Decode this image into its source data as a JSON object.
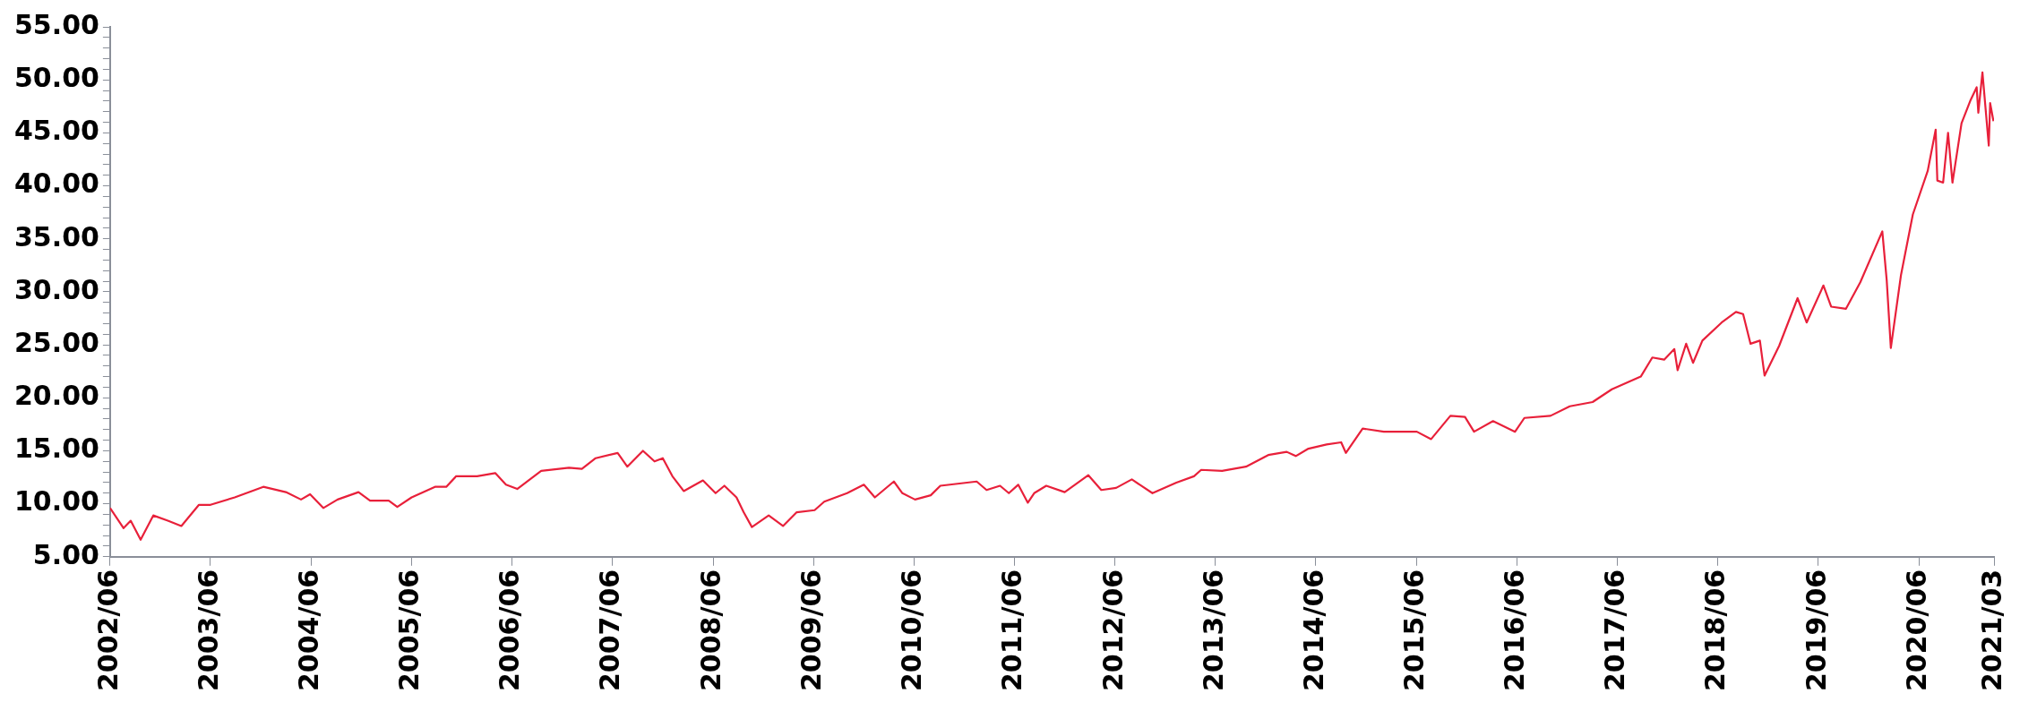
{
  "chart_data": {
    "type": "line",
    "color": "#e8203a",
    "grid": false,
    "xlim": [
      "2002-06",
      "2021-03"
    ],
    "xticks": [
      {
        "value": "2002-06",
        "label": "2002/06"
      },
      {
        "value": "2003-06",
        "label": "2003/06"
      },
      {
        "value": "2004-06",
        "label": "2004/06"
      },
      {
        "value": "2005-06",
        "label": "2005/06"
      },
      {
        "value": "2006-06",
        "label": "2006/06"
      },
      {
        "value": "2007-06",
        "label": "2007/06"
      },
      {
        "value": "2008-06",
        "label": "2008/06"
      },
      {
        "value": "2009-06",
        "label": "2009/06"
      },
      {
        "value": "2010-06",
        "label": "2010/06"
      },
      {
        "value": "2011-06",
        "label": "2011/06"
      },
      {
        "value": "2012-06",
        "label": "2012/06"
      },
      {
        "value": "2013-06",
        "label": "2013/06"
      },
      {
        "value": "2014-06",
        "label": "2014/06"
      },
      {
        "value": "2015-06",
        "label": "2015/06"
      },
      {
        "value": "2016-06",
        "label": "2016/06"
      },
      {
        "value": "2017-06",
        "label": "2017/06"
      },
      {
        "value": "2018-06",
        "label": "2018/06"
      },
      {
        "value": "2019-06",
        "label": "2019/06"
      },
      {
        "value": "2020-06",
        "label": "2020/06"
      },
      {
        "value": "2021-03",
        "label": "2021/03"
      }
    ],
    "ylim": [
      5,
      55
    ],
    "yticks": [
      {
        "value": 5,
        "label": "5.00"
      },
      {
        "value": 6,
        "label": null
      },
      {
        "value": 7,
        "label": null
      },
      {
        "value": 8,
        "label": null
      },
      {
        "value": 9,
        "label": null
      },
      {
        "value": 10,
        "label": "10.00"
      },
      {
        "value": 11,
        "label": null
      },
      {
        "value": 12,
        "label": null
      },
      {
        "value": 13,
        "label": null
      },
      {
        "value": 14,
        "label": null
      },
      {
        "value": 15,
        "label": "15.00"
      },
      {
        "value": 16,
        "label": null
      },
      {
        "value": 17,
        "label": null
      },
      {
        "value": 18,
        "label": null
      },
      {
        "value": 19,
        "label": null
      },
      {
        "value": 20,
        "label": "20.00"
      },
      {
        "value": 21,
        "label": null
      },
      {
        "value": 22,
        "label": null
      },
      {
        "value": 23,
        "label": null
      },
      {
        "value": 24,
        "label": null
      },
      {
        "value": 25,
        "label": "25.00"
      },
      {
        "value": 26,
        "label": null
      },
      {
        "value": 27,
        "label": null
      },
      {
        "value": 28,
        "label": null
      },
      {
        "value": 29,
        "label": null
      },
      {
        "value": 30,
        "label": "30.00"
      },
      {
        "value": 31,
        "label": null
      },
      {
        "value": 32,
        "label": null
      },
      {
        "value": 33,
        "label": null
      },
      {
        "value": 34,
        "label": null
      },
      {
        "value": 35,
        "label": "35.00"
      },
      {
        "value": 36,
        "label": null
      },
      {
        "value": 37,
        "label": null
      },
      {
        "value": 38,
        "label": null
      },
      {
        "value": 39,
        "label": null
      },
      {
        "value": 40,
        "label": "40.00"
      },
      {
        "value": 41,
        "label": null
      },
      {
        "value": 42,
        "label": null
      },
      {
        "value": 43,
        "label": null
      },
      {
        "value": 44,
        "label": null
      },
      {
        "value": 45,
        "label": "45.00"
      },
      {
        "value": 46,
        "label": null
      },
      {
        "value": 47,
        "label": null
      },
      {
        "value": 48,
        "label": null
      },
      {
        "value": 49,
        "label": null
      },
      {
        "value": 50,
        "label": "50.00"
      },
      {
        "value": 51,
        "label": null
      },
      {
        "value": 52,
        "label": null
      },
      {
        "value": 53,
        "label": null
      },
      {
        "value": 54,
        "label": null
      },
      {
        "value": 55,
        "label": "55.00"
      }
    ],
    "x": [
      "2002-06-01",
      "2002-07-20",
      "2002-08-15",
      "2002-09-20",
      "2002-11-05",
      "2002-12-28",
      "2003-02-15",
      "2003-04-20",
      "2003-06-01",
      "2003-08-28",
      "2003-12-10",
      "2004-03-01",
      "2004-04-25",
      "2004-05-28",
      "2004-07-15",
      "2004-09-05",
      "2004-11-20",
      "2005-01-01",
      "2005-03-10",
      "2005-04-10",
      "2005-06-01",
      "2005-08-25",
      "2005-10-05",
      "2005-11-10",
      "2006-01-25",
      "2006-04-01",
      "2006-05-10",
      "2006-06-20",
      "2006-09-15",
      "2006-12-25",
      "2007-02-10",
      "2007-04-01",
      "2007-06-20",
      "2007-07-25",
      "2007-09-20",
      "2007-11-01",
      "2007-12-01",
      "2008-01-05",
      "2008-02-15",
      "2008-04-25",
      "2008-06-10",
      "2008-07-12",
      "2008-08-25",
      "2008-09-20",
      "2008-10-20",
      "2008-12-20",
      "2009-02-10",
      "2009-04-01",
      "2009-06-05",
      "2009-07-10",
      "2009-10-01",
      "2009-12-01",
      "2010-01-10",
      "2010-03-20",
      "2010-04-20",
      "2010-06-05",
      "2010-08-01",
      "2010-09-05",
      "2011-01-15",
      "2011-02-20",
      "2011-04-10",
      "2011-05-12",
      "2011-06-15",
      "2011-07-20",
      "2011-08-12",
      "2011-09-25",
      "2011-12-01",
      "2012-02-25",
      "2012-04-12",
      "2012-06-05",
      "2012-08-01",
      "2012-10-15",
      "2013-01-10",
      "2013-03-15",
      "2013-04-10",
      "2013-06-25",
      "2013-09-20",
      "2013-12-10",
      "2014-02-15",
      "2014-03-20",
      "2014-05-05",
      "2014-07-10",
      "2014-09-01",
      "2014-09-18",
      "2014-11-18",
      "2015-02-03",
      "2015-06-03",
      "2015-07-25",
      "2015-10-03",
      "2015-11-25",
      "2015-12-28",
      "2016-03-06",
      "2016-05-25",
      "2016-06-28",
      "2016-10-01",
      "2016-12-10",
      "2017-03-03",
      "2017-05-12",
      "2017-08-25",
      "2017-10-06",
      "2017-11-18",
      "2017-12-25",
      "2018-01-06",
      "2018-02-06",
      "2018-03-03",
      "2018-04-06",
      "2018-06-15",
      "2018-08-06",
      "2018-09-01",
      "2018-09-28",
      "2018-11-01",
      "2018-11-18",
      "2019-01-10",
      "2019-03-18",
      "2019-04-20",
      "2019-06-20",
      "2019-07-18",
      "2019-09-10",
      "2019-11-01",
      "2020-01-20",
      "2020-02-05",
      "2020-02-20",
      "2020-03-28",
      "2020-05-10",
      "2020-07-03",
      "2020-08-01",
      "2020-08-07",
      "2020-08-28",
      "2020-09-15",
      "2020-10-01",
      "2020-11-03",
      "2020-12-06",
      "2020-12-28",
      "2021-01-03",
      "2021-01-18",
      "2021-02-10",
      "2021-02-15",
      "2021-02-27"
    ],
    "values": [
      9.6,
      7.7,
      8.4,
      6.6,
      8.9,
      8.4,
      7.9,
      9.9,
      9.9,
      10.6,
      11.6,
      11.1,
      10.4,
      10.9,
      9.6,
      10.4,
      11.1,
      10.3,
      10.3,
      9.7,
      10.6,
      11.6,
      11.6,
      12.6,
      12.6,
      12.9,
      11.8,
      11.4,
      13.1,
      13.4,
      13.3,
      14.3,
      14.8,
      13.5,
      15.0,
      14.0,
      14.3,
      12.6,
      11.2,
      12.2,
      11.0,
      11.7,
      10.6,
      9.2,
      7.8,
      8.9,
      7.9,
      9.2,
      9.4,
      10.2,
      11.0,
      11.8,
      10.6,
      12.1,
      11.0,
      10.4,
      10.8,
      11.7,
      12.1,
      11.3,
      11.7,
      11.0,
      11.8,
      10.1,
      11.0,
      11.7,
      11.1,
      12.7,
      11.3,
      11.5,
      12.3,
      11.0,
      12.0,
      12.6,
      13.2,
      13.1,
      13.5,
      14.6,
      14.9,
      14.5,
      15.2,
      15.6,
      15.8,
      14.8,
      17.1,
      16.8,
      16.8,
      16.1,
      18.3,
      18.2,
      16.8,
      17.8,
      16.8,
      18.1,
      18.3,
      19.2,
      19.6,
      20.8,
      22.0,
      23.8,
      23.6,
      24.6,
      22.6,
      25.1,
      23.3,
      25.4,
      27.1,
      28.1,
      27.9,
      25.1,
      25.4,
      22.1,
      24.9,
      29.4,
      27.1,
      30.6,
      28.6,
      28.4,
      30.9,
      35.7,
      31.1,
      24.7,
      31.6,
      37.3,
      41.4,
      45.3,
      40.5,
      40.3,
      45.0,
      40.3,
      45.9,
      48.1,
      49.3,
      46.9,
      50.7,
      43.8,
      47.8,
      46.1
    ]
  }
}
